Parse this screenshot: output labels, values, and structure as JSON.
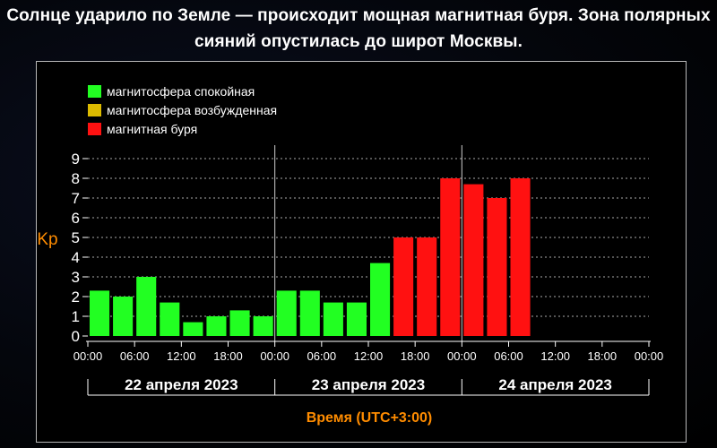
{
  "headline": {
    "line1": "Солнце ударило по Земле — происходит мощная магнитная буря. Зона полярных",
    "line2": "сияний опустилась до широт Москвы."
  },
  "colors": {
    "calm": "#22ff22",
    "excited": "#ddbb00",
    "storm": "#ff1111",
    "axis_title": "#ff8c00",
    "axis": "#ffffff",
    "grid": "#aaaaaa"
  },
  "chart_data": {
    "type": "bar",
    "title": "",
    "ylabel": "Kp",
    "xlabel": "Время (UTC+3:00)",
    "ylim": [
      0,
      9
    ],
    "yticks": [
      0,
      1,
      2,
      3,
      4,
      5,
      6,
      7,
      8,
      9
    ],
    "xtick_labels": [
      "00:00",
      "06:00",
      "12:00",
      "18:00",
      "00:00",
      "06:00",
      "12:00",
      "18:00",
      "00:00",
      "06:00",
      "12:00",
      "18:00",
      "00:00"
    ],
    "days": [
      "22 апреля 2023",
      "23 апреля 2023",
      "24 апреля 2023"
    ],
    "legend": [
      {
        "label": "магнитосфера спокойная",
        "status": "calm"
      },
      {
        "label": "магнитосфера возбужденная",
        "status": "excited"
      },
      {
        "label": "магнитная буря",
        "status": "storm"
      }
    ],
    "legend_position": "top-left",
    "grid": true,
    "bar_interval_hours": 3,
    "bars": [
      {
        "slot": 0,
        "value": 2.3,
        "status": "calm"
      },
      {
        "slot": 1,
        "value": 2.0,
        "status": "calm"
      },
      {
        "slot": 2,
        "value": 3.0,
        "status": "calm"
      },
      {
        "slot": 3,
        "value": 1.7,
        "status": "calm"
      },
      {
        "slot": 4,
        "value": 0.7,
        "status": "calm"
      },
      {
        "slot": 5,
        "value": 1.0,
        "status": "calm"
      },
      {
        "slot": 6,
        "value": 1.3,
        "status": "calm"
      },
      {
        "slot": 7,
        "value": 1.0,
        "status": "calm"
      },
      {
        "slot": 8,
        "value": 2.3,
        "status": "calm"
      },
      {
        "slot": 9,
        "value": 2.3,
        "status": "calm"
      },
      {
        "slot": 10,
        "value": 1.7,
        "status": "calm"
      },
      {
        "slot": 11,
        "value": 1.7,
        "status": "calm"
      },
      {
        "slot": 12,
        "value": 3.7,
        "status": "calm"
      },
      {
        "slot": 13,
        "value": 5.0,
        "status": "storm"
      },
      {
        "slot": 14,
        "value": 5.0,
        "status": "storm"
      },
      {
        "slot": 15,
        "value": 8.0,
        "status": "storm"
      },
      {
        "slot": 16,
        "value": 7.7,
        "status": "storm"
      },
      {
        "slot": 17,
        "value": 7.0,
        "status": "storm"
      },
      {
        "slot": 18,
        "value": 8.0,
        "status": "storm"
      }
    ]
  }
}
